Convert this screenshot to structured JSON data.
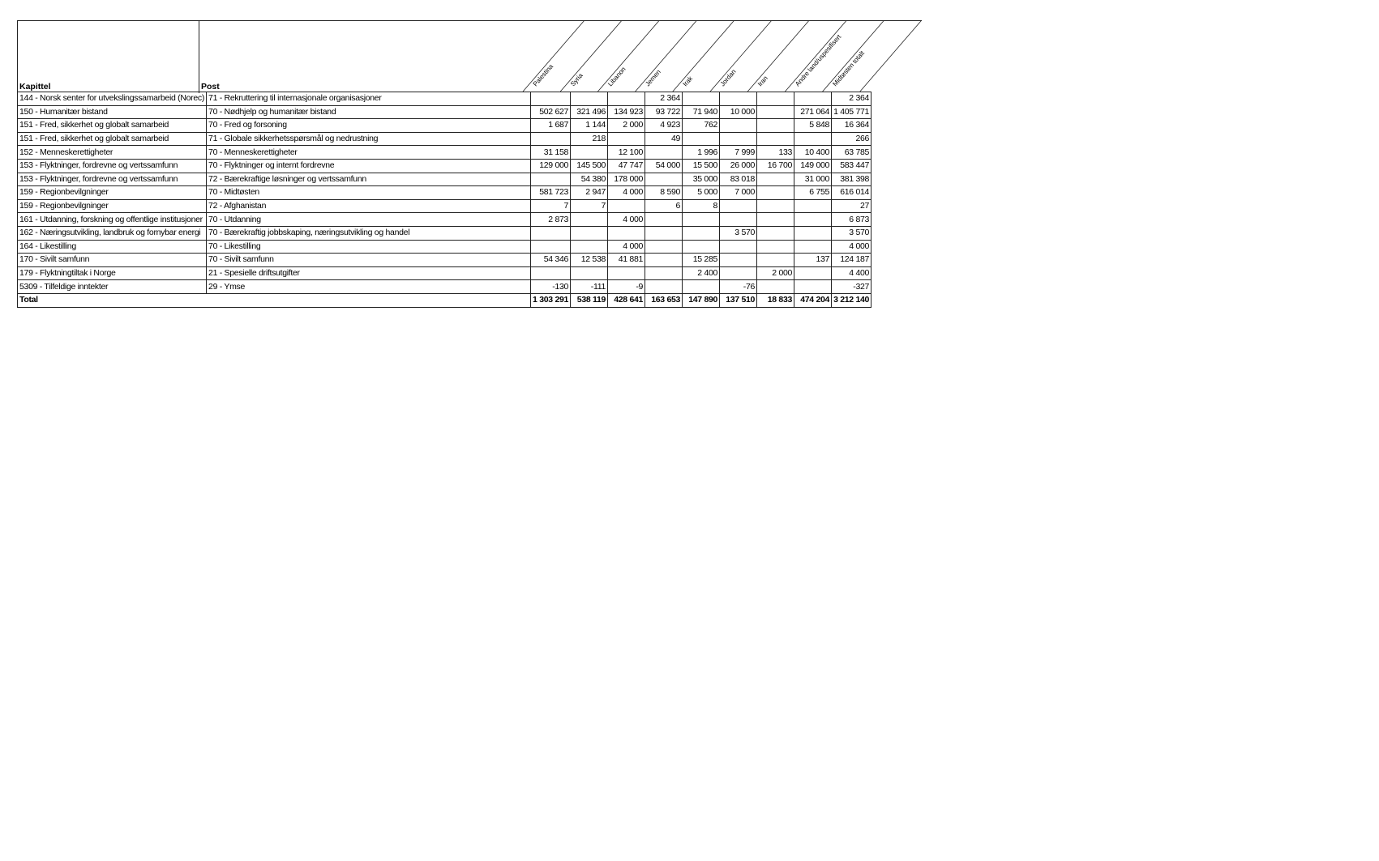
{
  "headers": {
    "kapittel": "Kapittel",
    "post": "Post",
    "columns": [
      "Palestina",
      "Syria",
      "Libanon",
      "Jemen",
      "Irak",
      "Jordan",
      "Iran",
      "Andre land/uspesifisert",
      "Midtøsten totalt"
    ]
  },
  "rows": [
    {
      "kapittel": "144 - Norsk senter for utvekslingssamarbeid (Norec)",
      "post": "71 - Rekruttering til internasjonale organisasjoner",
      "values": [
        "",
        "",
        "",
        "2 364",
        "",
        "",
        "",
        "",
        "2 364"
      ]
    },
    {
      "kapittel": "150 - Humanitær bistand",
      "post": "70 - Nødhjelp og humanitær bistand",
      "values": [
        "502 627",
        "321 496",
        "134 923",
        "93 722",
        "71 940",
        "10 000",
        "",
        "271 064",
        "1 405 771"
      ]
    },
    {
      "kapittel": "151 - Fred, sikkerhet og globalt samarbeid",
      "post": "70 - Fred og forsoning",
      "values": [
        "1 687",
        "1 144",
        "2 000",
        "4 923",
        "762",
        "",
        "",
        "5 848",
        "16 364"
      ]
    },
    {
      "kapittel": "151 - Fred, sikkerhet og globalt samarbeid",
      "post": "71 - Globale sikkerhetsspørsmål og nedrustning",
      "values": [
        "",
        "218",
        "",
        "49",
        "",
        "",
        "",
        "",
        "266"
      ]
    },
    {
      "kapittel": "152 - Menneskerettigheter",
      "post": "70 - Menneskerettigheter",
      "values": [
        "31 158",
        "",
        "12 100",
        "",
        "1 996",
        "7 999",
        "133",
        "10 400",
        "63 785"
      ]
    },
    {
      "kapittel": "153 - Flyktninger, fordrevne og vertssamfunn",
      "post": "70 - Flyktninger og internt fordrevne",
      "values": [
        "129 000",
        "145 500",
        "47 747",
        "54 000",
        "15 500",
        "26 000",
        "16 700",
        "149 000",
        "583 447"
      ]
    },
    {
      "kapittel": "153 - Flyktninger, fordrevne og vertssamfunn",
      "post": "72 - Bærekraftige løsninger og vertssamfunn",
      "values": [
        "",
        "54 380",
        "178 000",
        "",
        "35 000",
        "83 018",
        "",
        "31 000",
        "381 398"
      ]
    },
    {
      "kapittel": "159 - Regionbevilgninger",
      "post": "70 - Midtøsten",
      "values": [
        "581 723",
        "2 947",
        "4 000",
        "8 590",
        "5 000",
        "7 000",
        "",
        "6 755",
        "616 014"
      ]
    },
    {
      "kapittel": "159 - Regionbevilgninger",
      "post": "72 - Afghanistan",
      "values": [
        "7",
        "7",
        "",
        "6",
        "8",
        "",
        "",
        "",
        "27"
      ]
    },
    {
      "kapittel": "161 - Utdanning, forskning og offentlige institusjoner",
      "post": "70 - Utdanning",
      "values": [
        "2 873",
        "",
        "4 000",
        "",
        "",
        "",
        "",
        "",
        "6 873"
      ]
    },
    {
      "kapittel": "162 - Næringsutvikling, landbruk og fornybar energi",
      "post": "70 - Bærekraftig jobbskaping, næringsutvikling og handel",
      "values": [
        "",
        "",
        "",
        "",
        "",
        "3 570",
        "",
        "",
        "3 570"
      ]
    },
    {
      "kapittel": "164 - Likestilling",
      "post": "70 - Likestilling",
      "values": [
        "",
        "",
        "4 000",
        "",
        "",
        "",
        "",
        "",
        "4 000"
      ]
    },
    {
      "kapittel": "170 - Sivilt samfunn",
      "post": "70 - Sivilt samfunn",
      "values": [
        "54 346",
        "12 538",
        "41 881",
        "",
        "15 285",
        "",
        "",
        "137",
        "124 187"
      ]
    },
    {
      "kapittel": "179 - Flyktningtiltak i Norge",
      "post": "21 - Spesielle driftsutgifter",
      "values": [
        "",
        "",
        "",
        "",
        "2 400",
        "",
        "2 000",
        "",
        "4 400"
      ]
    },
    {
      "kapittel": "5309 - Tilfeldige inntekter",
      "post": "29 - Ymse",
      "values": [
        "-130",
        "-111",
        "-9",
        "",
        "",
        "-76",
        "",
        "",
        "-327"
      ]
    }
  ],
  "total": {
    "label": "Total",
    "values": [
      "1 303 291",
      "538 119",
      "428 641",
      "163 653",
      "147 890",
      "137 510",
      "18 833",
      "474 204",
      "3 212 140"
    ]
  }
}
